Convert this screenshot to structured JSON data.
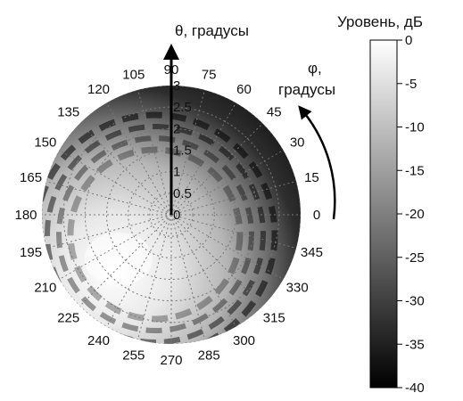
{
  "chart_data": {
    "type": "heatmap",
    "projection": "polar",
    "title": "",
    "theta_axis": {
      "label": "θ, градусы",
      "ticks": [
        "0",
        "0.5",
        "1",
        "1.5",
        "2",
        "2.5",
        "3"
      ],
      "range": [
        0,
        3
      ]
    },
    "phi_axis": {
      "label_line1": "φ,",
      "label_line2": "градусы",
      "ticks": [
        "0",
        "15",
        "30",
        "45",
        "60",
        "75",
        "90",
        "105",
        "120",
        "135",
        "150",
        "165",
        "180",
        "195",
        "210",
        "225",
        "240",
        "255",
        "270",
        "285",
        "300",
        "315",
        "330",
        "345"
      ],
      "range": [
        0,
        360
      ]
    },
    "colorbar": {
      "label": "Уровень, дБ",
      "ticks": [
        "0",
        "-5",
        "-10",
        "-15",
        "-20",
        "-25",
        "-30",
        "-35",
        "-40"
      ],
      "range": [
        -40,
        0
      ],
      "colormap": "gray"
    },
    "grid": true,
    "hotspot": {
      "phi_deg": 220,
      "theta_deg": 1.6,
      "level_db": 0
    }
  }
}
